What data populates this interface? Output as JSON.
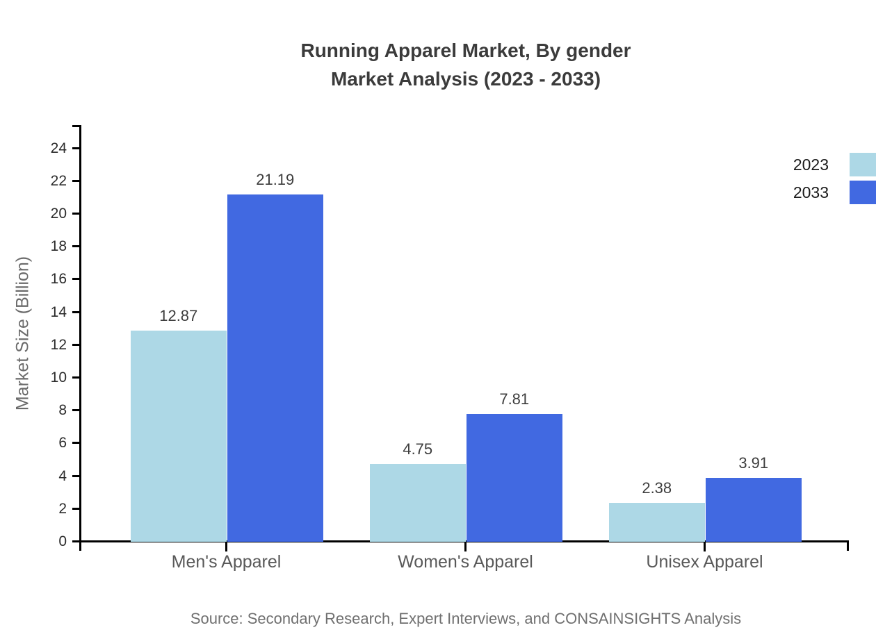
{
  "chart": {
    "title_line1": "Running Apparel Market, By gender",
    "title_line2": "Market Analysis (2023 - 2033)"
  },
  "chart_data": {
    "type": "bar",
    "title": "Running Apparel Market, By gender Market Analysis (2023 - 2033)",
    "title_lines": [
      "Running Apparel Market, By gender",
      "Market Analysis (2023 - 2033)"
    ],
    "categories": [
      "Men's Apparel",
      "Women's Apparel",
      "Unisex Apparel"
    ],
    "series": [
      {
        "name": "2023",
        "color": "#add8e6",
        "values": [
          12.87,
          4.75,
          2.38
        ]
      },
      {
        "name": "2033",
        "color": "#4169e1",
        "values": [
          21.19,
          7.81,
          3.91
        ]
      }
    ],
    "value_labels": [
      "12.87",
      "21.19",
      "4.75",
      "7.81",
      "2.38",
      "3.91"
    ],
    "xlabel": "",
    "ylabel": "Market Size (Billion)",
    "ylim": [
      0,
      25
    ],
    "yticks": [
      0,
      2,
      4,
      6,
      8,
      10,
      12,
      14,
      16,
      18,
      20,
      22,
      24
    ],
    "grid": false,
    "legend_position": "top-right",
    "source": "Source: Secondary Research, Expert Interviews, and CONSAINSIGHTS Analysis",
    "colors": {
      "series_2023": "#add8e6",
      "series_2033": "#4169e1",
      "axis": "#000000",
      "title_text": "#3b3b3b",
      "tick_text": "#2b2b2b",
      "category_text": "#595959",
      "muted_text": "#707070"
    }
  }
}
